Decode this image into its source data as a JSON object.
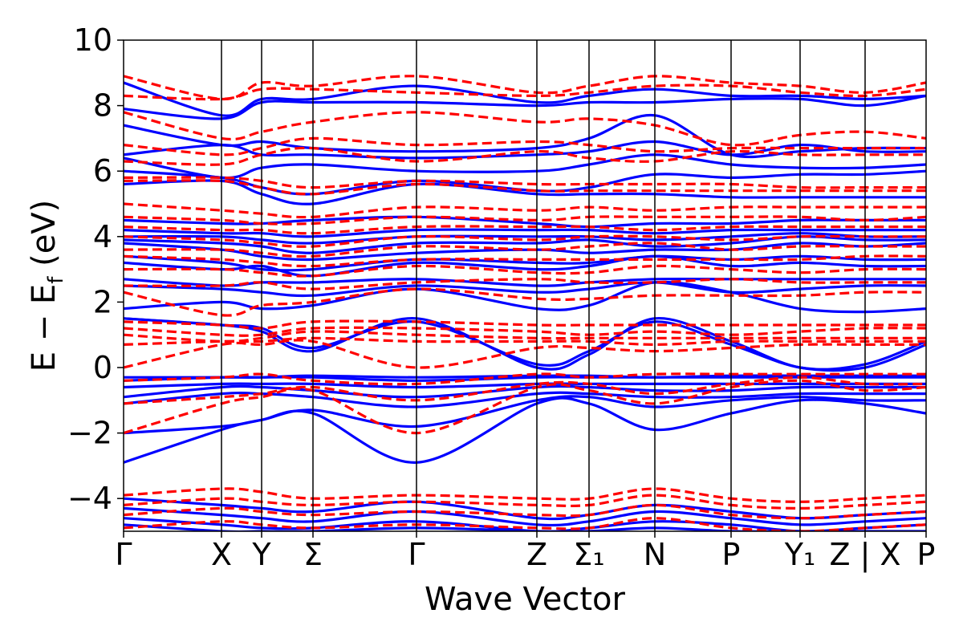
{
  "chart_data": {
    "type": "line",
    "xlabel": "Wave Vector",
    "ylabel": "E − E_f (eV)",
    "ylabel_parts": {
      "a": "E − E",
      "sub": "f",
      "b": " (eV)"
    },
    "ylim": [
      -5,
      10
    ],
    "yticks": [
      -4,
      -2,
      0,
      2,
      4,
      6,
      8,
      10
    ],
    "ytick_labels": [
      "−4",
      "−2",
      "0",
      "2",
      "4",
      "6",
      "8",
      "10"
    ],
    "xlim": [
      0,
      100
    ],
    "kpoints": [
      {
        "label": "Γ",
        "x": 0
      },
      {
        "label": "X",
        "x": 12.2
      },
      {
        "label": "Y",
        "x": 17.2
      },
      {
        "label": "Σ",
        "x": 23.6
      },
      {
        "label": "Γ",
        "x": 36.5
      },
      {
        "label": "Z",
        "x": 51.5
      },
      {
        "label": "Σ₁",
        "x": 58.0
      },
      {
        "label": "N",
        "x": 66.2
      },
      {
        "label": "P",
        "x": 75.7
      },
      {
        "label": "Y₁",
        "x": 84.3
      },
      {
        "label": "Z | X",
        "x": 92.4
      },
      {
        "label": "P",
        "x": 100
      }
    ],
    "grid": false,
    "colors": {
      "solid_series": "#0000ff",
      "dashed_series": "#ff0000"
    },
    "series": [
      {
        "style": "solid",
        "bands": [
          [
            -2.9,
            -1.9,
            -1.6,
            -1.4,
            -2.9,
            -1.1,
            -1.1,
            -1.9,
            -1.4,
            -1.0,
            -1.1,
            -1.4
          ],
          [
            -2.0,
            -1.8,
            -1.6,
            -1.3,
            -1.8,
            -1.0,
            -0.9,
            -1.2,
            -1.0,
            -0.9,
            -1.0,
            -1.0
          ],
          [
            -1.1,
            -0.8,
            -0.8,
            -0.9,
            -1.2,
            -0.8,
            -0.8,
            -0.9,
            -0.9,
            -0.8,
            -0.8,
            -0.8
          ],
          [
            -0.9,
            -0.6,
            -0.6,
            -0.7,
            -0.9,
            -0.6,
            -0.6,
            -0.7,
            -0.7,
            -0.6,
            -0.6,
            -0.6
          ],
          [
            -0.6,
            -0.5,
            -0.5,
            -0.5,
            -0.6,
            -0.5,
            -0.5,
            -0.5,
            -0.5,
            -0.5,
            -0.5,
            -0.5
          ],
          [
            -0.4,
            -0.3,
            -0.3,
            -0.3,
            -0.4,
            -0.3,
            -0.3,
            -0.3,
            -0.3,
            -0.3,
            -0.3,
            -0.3
          ],
          [
            -0.3,
            -0.3,
            -0.3,
            -0.25,
            -0.3,
            -0.25,
            -0.25,
            -0.3,
            -0.25,
            -0.25,
            -0.25,
            -0.25
          ],
          [
            1.5,
            1.3,
            1.1,
            0.5,
            1.5,
            0.0,
            0.4,
            1.5,
            0.8,
            0.0,
            0.1,
            0.8
          ],
          [
            1.5,
            1.3,
            1.2,
            0.6,
            1.4,
            0.1,
            0.5,
            1.4,
            0.7,
            0.0,
            0.0,
            0.7
          ],
          [
            1.8,
            2.0,
            1.8,
            1.9,
            2.4,
            1.8,
            1.9,
            2.6,
            2.3,
            1.8,
            1.7,
            1.8
          ],
          [
            2.5,
            2.4,
            2.3,
            2.2,
            2.5,
            2.3,
            2.4,
            2.6,
            2.3,
            2.4,
            2.5,
            2.5
          ],
          [
            2.7,
            2.5,
            2.6,
            2.6,
            2.7,
            2.5,
            2.6,
            2.7,
            2.7,
            2.7,
            2.7,
            2.7
          ],
          [
            3.2,
            3.0,
            3.1,
            2.8,
            3.2,
            3.0,
            3.1,
            3.4,
            3.1,
            3.2,
            3.1,
            3.1
          ],
          [
            3.4,
            3.2,
            3.0,
            3.0,
            3.3,
            3.2,
            3.2,
            3.4,
            3.3,
            3.4,
            3.3,
            3.3
          ],
          [
            3.8,
            3.6,
            3.4,
            3.3,
            3.5,
            3.6,
            3.5,
            3.6,
            3.6,
            3.8,
            3.7,
            3.8
          ],
          [
            3.9,
            3.8,
            3.7,
            3.5,
            3.8,
            3.8,
            3.9,
            3.7,
            3.8,
            4.0,
            3.9,
            3.9
          ],
          [
            4.0,
            4.0,
            3.9,
            3.8,
            4.0,
            4.0,
            4.0,
            3.9,
            4.0,
            4.1,
            4.0,
            4.0
          ],
          [
            4.2,
            4.1,
            4.1,
            4.0,
            4.2,
            4.2,
            4.2,
            4.1,
            4.2,
            4.2,
            4.2,
            4.2
          ],
          [
            4.5,
            4.4,
            4.4,
            4.5,
            4.6,
            4.4,
            4.3,
            4.4,
            4.4,
            4.5,
            4.5,
            4.5
          ],
          [
            5.6,
            5.7,
            5.3,
            5.0,
            5.6,
            5.3,
            5.3,
            5.3,
            5.2,
            5.2,
            5.2,
            5.2
          ],
          [
            6.0,
            5.8,
            5.5,
            5.3,
            5.7,
            5.4,
            5.5,
            5.9,
            5.8,
            5.9,
            5.9,
            6.0
          ],
          [
            6.4,
            5.8,
            6.1,
            6.2,
            6.0,
            6.0,
            6.2,
            6.5,
            6.2,
            6.1,
            6.1,
            6.2
          ],
          [
            6.5,
            6.8,
            6.5,
            6.5,
            6.4,
            6.5,
            6.6,
            6.9,
            6.5,
            6.8,
            6.6,
            6.6
          ],
          [
            7.4,
            6.8,
            6.9,
            6.7,
            6.6,
            6.7,
            7.0,
            7.7,
            6.5,
            6.6,
            6.7,
            6.7
          ],
          [
            7.9,
            7.6,
            8.1,
            8.1,
            8.1,
            8.0,
            8.1,
            8.1,
            8.2,
            8.2,
            8.0,
            8.3
          ],
          [
            8.7,
            7.7,
            8.2,
            8.2,
            8.6,
            8.1,
            8.3,
            8.5,
            8.3,
            8.3,
            8.2,
            8.3
          ],
          [
            -4.0,
            -4.2,
            -4.3,
            -4.4,
            -4.1,
            -4.6,
            -4.5,
            -4.2,
            -4.4,
            -4.6,
            -4.5,
            -4.4
          ],
          [
            -4.3,
            -4.5,
            -4.6,
            -4.7,
            -4.4,
            -4.8,
            -4.7,
            -4.4,
            -4.6,
            -4.8,
            -4.7,
            -4.6
          ],
          [
            -4.6,
            -4.8,
            -4.9,
            -4.9,
            -4.7,
            -5.0,
            -4.9,
            -4.7,
            -4.8,
            -5.0,
            -4.9,
            -4.8
          ],
          [
            -4.8,
            -5.0,
            -5.0,
            -5.0,
            -4.9,
            -5.0,
            -5.0,
            -4.9,
            -5.0,
            -5.0,
            -5.0,
            -5.0
          ]
        ]
      },
      {
        "style": "dashed",
        "bands": [
          [
            -2.0,
            -1.1,
            -0.9,
            -0.7,
            -2.0,
            -0.6,
            -0.7,
            -1.1,
            -0.6,
            -0.4,
            -0.7,
            -0.6
          ],
          [
            -1.1,
            -0.9,
            -0.8,
            -0.6,
            -1.0,
            -0.5,
            -0.5,
            -0.8,
            -0.5,
            -0.3,
            -0.5,
            -0.5
          ],
          [
            -0.4,
            -0.3,
            -0.2,
            -0.4,
            -0.5,
            -0.2,
            -0.3,
            -0.2,
            -0.2,
            -0.2,
            -0.2,
            -0.2
          ],
          [
            0.0,
            0.7,
            0.7,
            0.8,
            0.0,
            0.6,
            0.6,
            0.5,
            0.6,
            0.7,
            0.7,
            0.7
          ],
          [
            0.7,
            0.8,
            0.8,
            0.9,
            0.8,
            0.8,
            0.8,
            0.7,
            0.8,
            0.8,
            0.8,
            0.8
          ],
          [
            1.0,
            0.8,
            0.9,
            1.1,
            1.0,
            0.9,
            0.9,
            0.9,
            0.9,
            0.9,
            0.9,
            0.9
          ],
          [
            1.2,
            1.0,
            1.0,
            1.2,
            1.2,
            1.1,
            1.0,
            1.1,
            1.0,
            1.1,
            1.2,
            1.2
          ],
          [
            1.4,
            1.3,
            1.2,
            1.4,
            1.4,
            1.3,
            1.3,
            1.3,
            1.3,
            1.3,
            1.3,
            1.3
          ],
          [
            2.3,
            1.6,
            1.9,
            2.0,
            2.4,
            2.1,
            2.1,
            2.2,
            2.2,
            2.2,
            2.3,
            2.3
          ],
          [
            2.5,
            2.5,
            2.6,
            2.4,
            2.6,
            2.7,
            2.6,
            2.6,
            2.7,
            2.6,
            2.6,
            2.6
          ],
          [
            3.0,
            3.0,
            2.9,
            2.8,
            3.1,
            2.9,
            2.9,
            3.1,
            3.0,
            2.9,
            3.0,
            3.0
          ],
          [
            3.4,
            3.3,
            3.2,
            3.1,
            3.3,
            3.3,
            3.3,
            3.3,
            3.3,
            3.3,
            3.4,
            3.4
          ],
          [
            3.6,
            3.6,
            3.5,
            3.4,
            3.7,
            3.6,
            3.7,
            3.8,
            3.6,
            3.7,
            3.7,
            3.7
          ],
          [
            4.0,
            3.9,
            3.8,
            3.7,
            4.0,
            3.9,
            4.0,
            4.0,
            3.9,
            4.0,
            4.0,
            4.0
          ],
          [
            4.3,
            4.2,
            4.2,
            4.1,
            4.3,
            4.3,
            4.3,
            4.2,
            4.3,
            4.3,
            4.3,
            4.3
          ],
          [
            4.6,
            4.5,
            4.4,
            4.4,
            4.6,
            4.5,
            4.6,
            4.6,
            4.6,
            4.6,
            4.5,
            4.6
          ],
          [
            5.0,
            4.8,
            4.7,
            4.6,
            4.9,
            4.8,
            4.9,
            4.8,
            4.9,
            4.9,
            4.9,
            4.9
          ],
          [
            5.7,
            5.7,
            5.5,
            5.3,
            5.6,
            5.4,
            5.4,
            5.4,
            5.4,
            5.4,
            5.4,
            5.4
          ],
          [
            5.8,
            5.8,
            5.7,
            5.5,
            5.7,
            5.6,
            5.6,
            5.6,
            5.6,
            5.5,
            5.5,
            5.5
          ],
          [
            6.3,
            6.2,
            6.5,
            6.7,
            6.3,
            6.6,
            6.4,
            6.3,
            6.6,
            6.5,
            6.5,
            6.5
          ],
          [
            6.8,
            6.5,
            6.7,
            7.0,
            6.8,
            6.9,
            6.8,
            6.6,
            6.7,
            6.7,
            6.7,
            6.7
          ],
          [
            7.8,
            7.0,
            7.2,
            7.5,
            7.8,
            7.5,
            7.6,
            7.4,
            6.8,
            7.1,
            7.2,
            7.0
          ],
          [
            8.3,
            8.2,
            8.5,
            8.5,
            8.4,
            8.3,
            8.4,
            8.6,
            8.6,
            8.4,
            8.3,
            8.5
          ],
          [
            8.9,
            8.2,
            8.7,
            8.6,
            8.9,
            8.4,
            8.6,
            8.9,
            8.7,
            8.6,
            8.4,
            8.7
          ],
          [
            -3.9,
            -3.7,
            -3.8,
            -4.0,
            -3.9,
            -4.0,
            -4.0,
            -3.7,
            -4.0,
            -4.1,
            -4.0,
            -3.9
          ],
          [
            -4.2,
            -4.0,
            -4.1,
            -4.2,
            -4.1,
            -4.2,
            -4.2,
            -3.9,
            -4.2,
            -4.3,
            -4.2,
            -4.1
          ],
          [
            -4.5,
            -4.3,
            -4.4,
            -4.5,
            -4.4,
            -4.5,
            -4.5,
            -4.2,
            -4.5,
            -4.6,
            -4.5,
            -4.4
          ],
          [
            -4.9,
            -4.7,
            -4.8,
            -4.9,
            -4.8,
            -4.9,
            -4.9,
            -4.6,
            -4.9,
            -5.0,
            -4.9,
            -4.8
          ]
        ]
      }
    ]
  }
}
